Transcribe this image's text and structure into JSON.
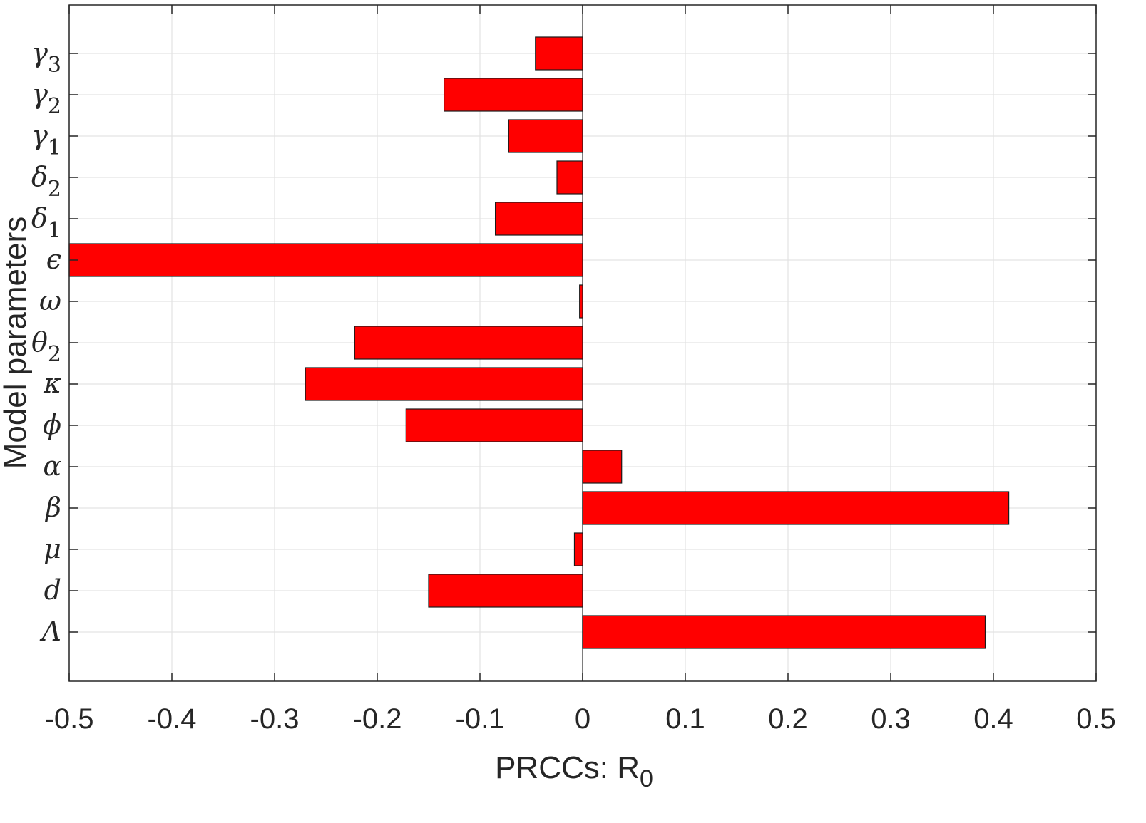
{
  "chart_data": {
    "type": "bar",
    "orientation": "horizontal",
    "title": "",
    "xlabel": {
      "main": "PRCCs: R",
      "sub": "0"
    },
    "ylabel": "Model parameters",
    "xlim": [
      -0.5,
      0.5
    ],
    "xticks": [
      "-0.5",
      "-0.4",
      "-0.3",
      "-0.2",
      "-0.1",
      "0",
      "0.1",
      "0.2",
      "0.3",
      "0.4",
      "0.5"
    ],
    "grid": true,
    "bar_color": "#ff0000",
    "categories": [
      {
        "base": "Λ",
        "sub": "",
        "italic": false,
        "value": 0.392
      },
      {
        "base": "d",
        "sub": "",
        "italic": false,
        "value": -0.15
      },
      {
        "base": "μ",
        "sub": "",
        "italic": true,
        "value": -0.008
      },
      {
        "base": "β",
        "sub": "",
        "italic": true,
        "value": 0.415
      },
      {
        "base": "α",
        "sub": "",
        "italic": true,
        "value": 0.038
      },
      {
        "base": "ϕ",
        "sub": "",
        "italic": true,
        "value": -0.172
      },
      {
        "base": "κ",
        "sub": "",
        "italic": true,
        "value": -0.27
      },
      {
        "base": "θ",
        "sub": "2",
        "italic": true,
        "value": -0.222
      },
      {
        "base": "ω",
        "sub": "",
        "italic": true,
        "value": -0.003
      },
      {
        "base": "ϵ",
        "sub": "",
        "italic": true,
        "value": -0.5
      },
      {
        "base": "δ",
        "sub": "1",
        "italic": true,
        "value": -0.085
      },
      {
        "base": "δ",
        "sub": "2",
        "italic": true,
        "value": -0.025
      },
      {
        "base": "γ",
        "sub": "1",
        "italic": true,
        "value": -0.072
      },
      {
        "base": "γ",
        "sub": "2",
        "italic": true,
        "value": -0.135
      },
      {
        "base": "γ",
        "sub": "3",
        "italic": true,
        "value": -0.046
      }
    ]
  }
}
